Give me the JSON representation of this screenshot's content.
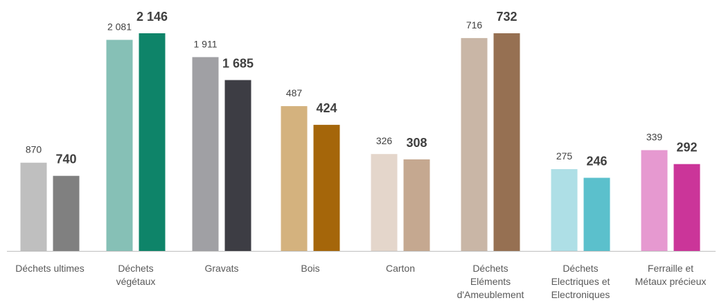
{
  "chart_data": [
    {
      "type": "bar",
      "title": "",
      "xlabel": "",
      "ylabel": "",
      "ylim": [
        0,
        2146
      ],
      "categories": [
        "Déchets ultimes",
        "Déchets végétaux",
        "Gravats"
      ],
      "category_lines": [
        [
          "Déchets ultimes"
        ],
        [
          "Déchets",
          "végétaux"
        ],
        [
          "Gravats"
        ]
      ],
      "series": [
        {
          "values": [
            870,
            2081,
            1911
          ],
          "labels": [
            "870",
            "2 081",
            "1 911"
          ]
        },
        {
          "values": [
            740,
            2146,
            1685
          ],
          "labels": [
            "740",
            "2 146",
            "1 685"
          ]
        }
      ],
      "colors": [
        [
          "#bfbfbf",
          "#808080"
        ],
        [
          "#86c0b6",
          "#0e8469"
        ],
        [
          "#a0a0a4",
          "#3d3d44"
        ]
      ]
    },
    {
      "type": "bar",
      "title": "",
      "xlabel": "",
      "ylabel": "",
      "ylim": [
        0,
        732
      ],
      "categories": [
        "Bois",
        "Carton",
        "Déchets Eléments d'Ameublement",
        "Déchets Electriques et Electroniques",
        "Ferraille et Métaux précieux"
      ],
      "category_lines": [
        [
          "Bois"
        ],
        [
          "Carton"
        ],
        [
          "Déchets",
          "Eléments",
          "d'Ameublement"
        ],
        [
          "Déchets",
          "Electriques et",
          "Electroniques"
        ],
        [
          "Ferraille et",
          "Métaux précieux"
        ]
      ],
      "series": [
        {
          "values": [
            487,
            326,
            716,
            275,
            339
          ],
          "labels": [
            "487",
            "326",
            "716",
            "275",
            "339"
          ]
        },
        {
          "values": [
            424,
            308,
            732,
            246,
            292
          ],
          "labels": [
            "424",
            "308",
            "732",
            "246",
            "292"
          ]
        }
      ],
      "colors": [
        [
          "#d4b27e",
          "#a5660a"
        ],
        [
          "#e4d6cb",
          "#c5a890"
        ],
        [
          "#c9b6a6",
          "#967052"
        ],
        [
          "#aedfe6",
          "#5bc0cc"
        ],
        [
          "#e699d0",
          "#cb3599"
        ]
      ]
    }
  ]
}
